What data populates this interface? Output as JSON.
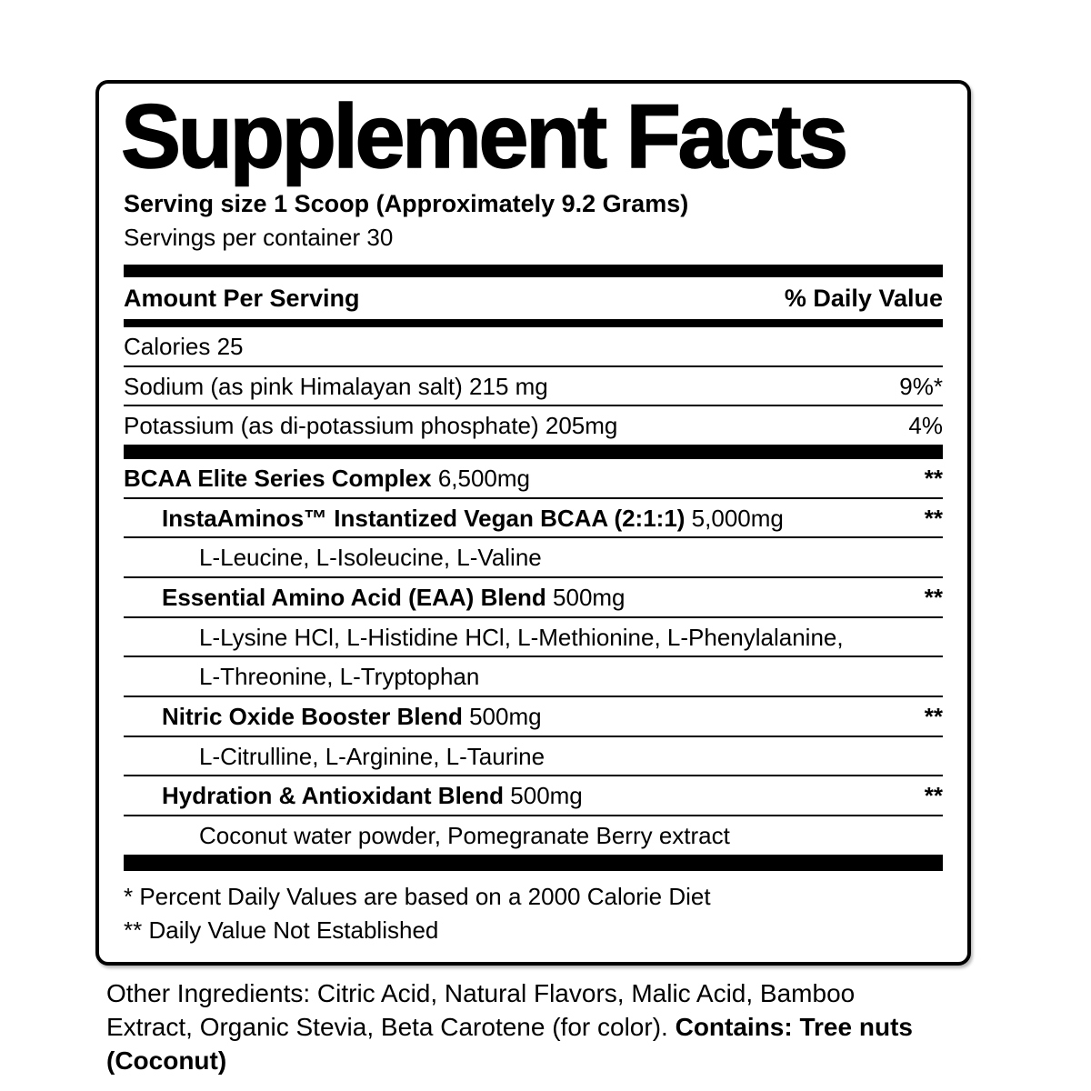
{
  "colors": {
    "text": "#000000",
    "background": "#ffffff"
  },
  "label": {
    "title": "Supplement Facts",
    "serving_size": "Serving size 1 Scoop (Approximately 9.2 Grams)",
    "servings_per_container": "Servings per container 30",
    "column_headers": {
      "left": "Amount Per Serving",
      "right": "% Daily Value"
    },
    "nutrient_rows": [
      {
        "label": "Calories 25",
        "amount": "",
        "dv": "",
        "indent": 0,
        "bold": false
      },
      {
        "label": "Sodium (as pink Himalayan salt) 215 mg",
        "amount": "",
        "dv": "9%*",
        "indent": 0,
        "bold": false
      },
      {
        "label": "Potassium (as di-potassium phosphate) 205mg",
        "amount": "",
        "dv": "4%",
        "indent": 0,
        "bold": false
      }
    ],
    "blend_rows": [
      {
        "label": "BCAA Elite Series Complex",
        "amount": "6,500mg",
        "dv": "**",
        "indent": 0,
        "bold": true
      },
      {
        "label": "InstaAminos™ Instantized Vegan BCAA (2:1:1)",
        "amount": "5,000mg",
        "dv": "**",
        "indent": 1,
        "bold": true
      },
      {
        "label": "L-Leucine, L-Isoleucine, L-Valine",
        "amount": "",
        "dv": "",
        "indent": 2,
        "bold": false
      },
      {
        "label": "Essential Amino Acid (EAA) Blend",
        "amount": "500mg",
        "dv": "**",
        "indent": 1,
        "bold": true
      },
      {
        "label": "L-Lysine HCl, L-Histidine HCl, L-Methionine, L-Phenylalanine,",
        "amount": "",
        "dv": "",
        "indent": 2,
        "bold": false
      },
      {
        "label": "L-Threonine, L-Tryptophan",
        "amount": "",
        "dv": "",
        "indent": 2,
        "bold": false
      },
      {
        "label": "Nitric Oxide Booster Blend",
        "amount": "500mg",
        "dv": "**",
        "indent": 1,
        "bold": true
      },
      {
        "label": "L-Citrulline, L-Arginine, L-Taurine",
        "amount": "",
        "dv": "",
        "indent": 2,
        "bold": false
      },
      {
        "label": "Hydration & Antioxidant Blend",
        "amount": "500mg",
        "dv": "**",
        "indent": 1,
        "bold": true
      },
      {
        "label": "Coconut water powder, Pomegranate Berry extract",
        "amount": "",
        "dv": "",
        "indent": 2,
        "bold": false
      }
    ],
    "footnotes": [
      "* Percent Daily Values are based on a 2000 Calorie Diet",
      "** Daily Value Not Established"
    ]
  },
  "other_ingredients": {
    "regular_part": "Other Ingredients: Citric Acid, Natural Flavors, Malic Acid, Bamboo Extract, Organic Stevia, Beta Carotene (for color). ",
    "bold_part": "Contains: Tree nuts (Coconut)"
  }
}
